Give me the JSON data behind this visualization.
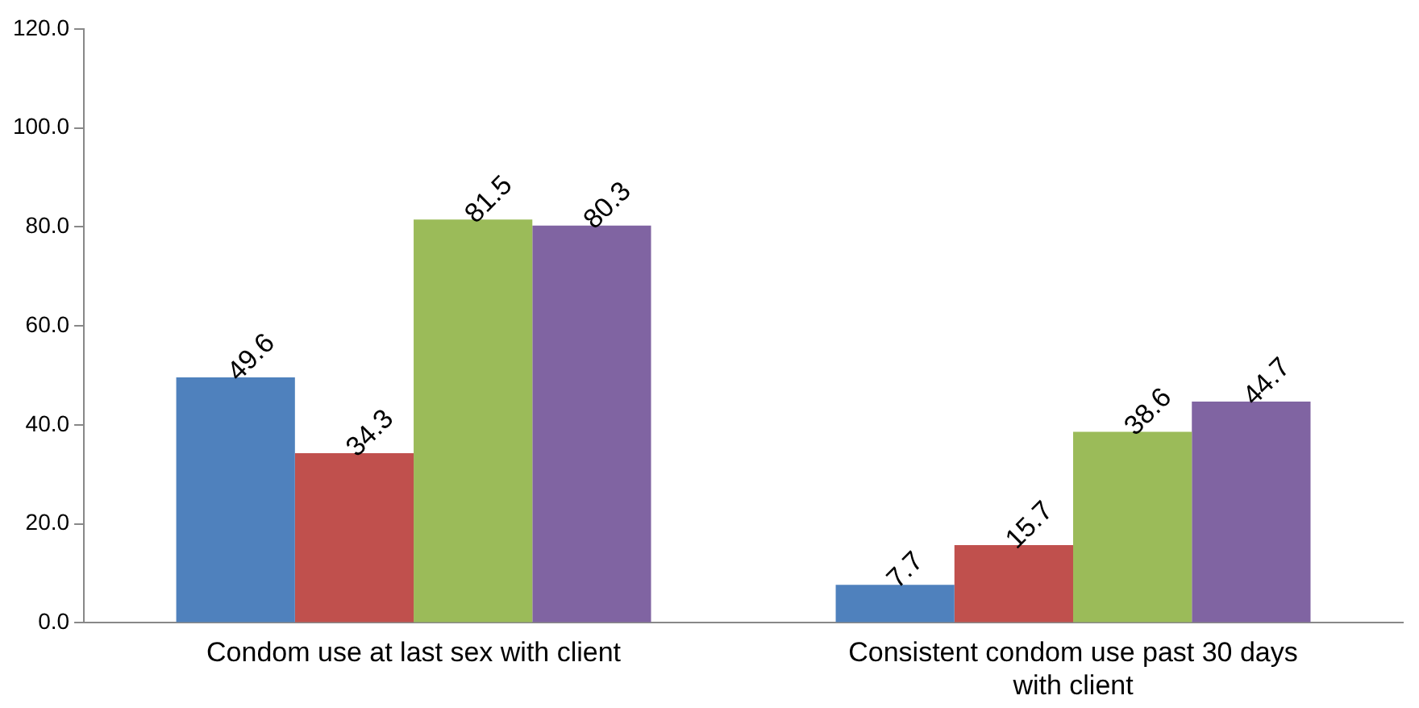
{
  "chart_data": {
    "type": "bar",
    "categories": [
      "Condom use at last sex with client",
      "Consistent condom use past 30 days with client"
    ],
    "series": [
      {
        "color": "#4f81bd",
        "values": [
          49.6,
          7.7
        ]
      },
      {
        "color": "#c0504d",
        "values": [
          34.3,
          15.7
        ]
      },
      {
        "color": "#9bbb59",
        "values": [
          81.5,
          38.6
        ]
      },
      {
        "color": "#8064a2",
        "values": [
          80.3,
          44.7
        ]
      }
    ],
    "ylim": [
      0,
      120
    ],
    "yticks": [
      {
        "value": 0,
        "label": "0.0"
      },
      {
        "value": 20,
        "label": "20.0"
      },
      {
        "value": 40,
        "label": "40.0"
      },
      {
        "value": 60,
        "label": "60.0"
      },
      {
        "value": 80,
        "label": "80.0"
      },
      {
        "value": 100,
        "label": "100.0"
      },
      {
        "value": 120,
        "label": "120.0"
      }
    ],
    "data_labels": true,
    "grid": false,
    "legend": false
  }
}
